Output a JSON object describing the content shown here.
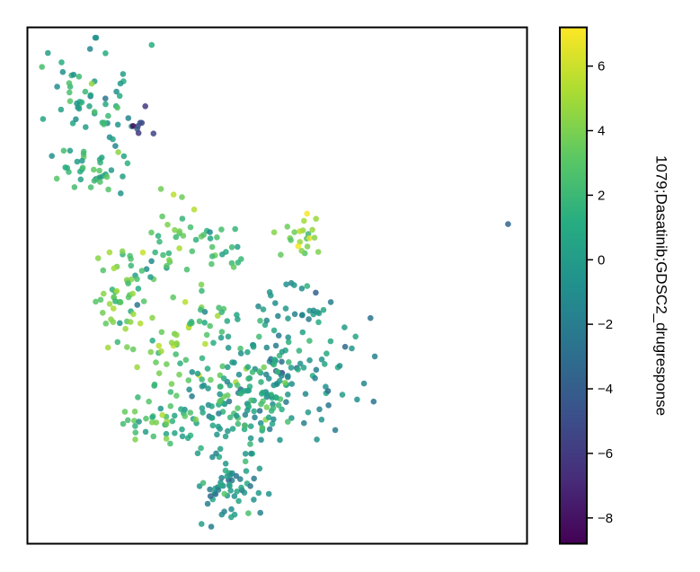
{
  "chart_data": {
    "type": "scatter",
    "title": "",
    "xlabel": "",
    "ylabel": "",
    "xlim": [
      0,
      100
    ],
    "ylim": [
      0,
      100
    ],
    "axis_ticks": false,
    "grid": false,
    "legend": "none",
    "colorbar": {
      "label": "1079;Dasatinib;GDSC2_drugresponse",
      "colormap": "viridis",
      "vmin": -8.8,
      "vmax": 7.2,
      "ticks": [
        6,
        4,
        2,
        0,
        -2,
        -4,
        -6,
        -8
      ],
      "tick_labels": [
        "6",
        "4",
        "2",
        "0",
        "−2",
        "−4",
        "−6",
        "−8"
      ],
      "stops": [
        "#440154",
        "#472c7a",
        "#3b518b",
        "#2c718e",
        "#21908d",
        "#27ad81",
        "#5cc863",
        "#aadc32",
        "#fde725"
      ]
    },
    "clusters": [
      {
        "cx": 13,
        "cy": 86,
        "sx": 5.5,
        "sy": 6,
        "n": 60,
        "mean": 0.5,
        "sd": 1.6
      },
      {
        "cx": 22.5,
        "cy": 80.5,
        "sx": 1.4,
        "sy": 1.4,
        "n": 8,
        "mean": -6.5,
        "sd": 1.1
      },
      {
        "cx": 10.5,
        "cy": 74,
        "sx": 2.8,
        "sy": 2.5,
        "n": 22,
        "mean": 1.8,
        "sd": 1.2
      },
      {
        "cx": 15.5,
        "cy": 70.5,
        "sx": 1.6,
        "sy": 1.8,
        "n": 12,
        "mean": 1,
        "sd": 1.2
      },
      {
        "cx": 31,
        "cy": 62.5,
        "sx": 1.8,
        "sy": 2.5,
        "n": 15,
        "mean": 3.5,
        "sd": 1.2
      },
      {
        "cx": 38.5,
        "cy": 57,
        "sx": 2.8,
        "sy": 2.2,
        "n": 22,
        "mean": 2.2,
        "sd": 1.6
      },
      {
        "cx": 55,
        "cy": 59,
        "sx": 2.2,
        "sy": 2.2,
        "n": 22,
        "mean": 4,
        "sd": 1.1
      },
      {
        "cx": 23.5,
        "cy": 53,
        "sx": 3.5,
        "sy": 3.5,
        "n": 35,
        "mean": 2.5,
        "sd": 1.5
      },
      {
        "cx": 18.5,
        "cy": 46,
        "sx": 2.5,
        "sy": 3,
        "n": 30,
        "mean": 3.6,
        "sd": 1.1
      },
      {
        "cx": 27,
        "cy": 37,
        "sx": 3.5,
        "sy": 4,
        "n": 30,
        "mean": 4,
        "sd": 1.3
      },
      {
        "cx": 36,
        "cy": 43,
        "sx": 2.5,
        "sy": 4,
        "n": 18,
        "mean": 3,
        "sd": 1.5
      },
      {
        "cx": 52,
        "cy": 37,
        "sx": 7,
        "sy": 8,
        "n": 140,
        "mean": -0.5,
        "sd": 1.6
      },
      {
        "cx": 42,
        "cy": 27,
        "sx": 6,
        "sy": 4.5,
        "n": 110,
        "mean": 0.8,
        "sd": 1.7
      },
      {
        "cx": 27,
        "cy": 24,
        "sx": 3.5,
        "sy": 2.5,
        "n": 40,
        "mean": 2.5,
        "sd": 1.3
      },
      {
        "cx": 41,
        "cy": 11,
        "sx": 3,
        "sy": 3,
        "n": 60,
        "mean": -0.3,
        "sd": 1.5
      }
    ],
    "outliers": [
      {
        "x": 96.2,
        "y": 61.9,
        "value": -3.5
      }
    ]
  }
}
